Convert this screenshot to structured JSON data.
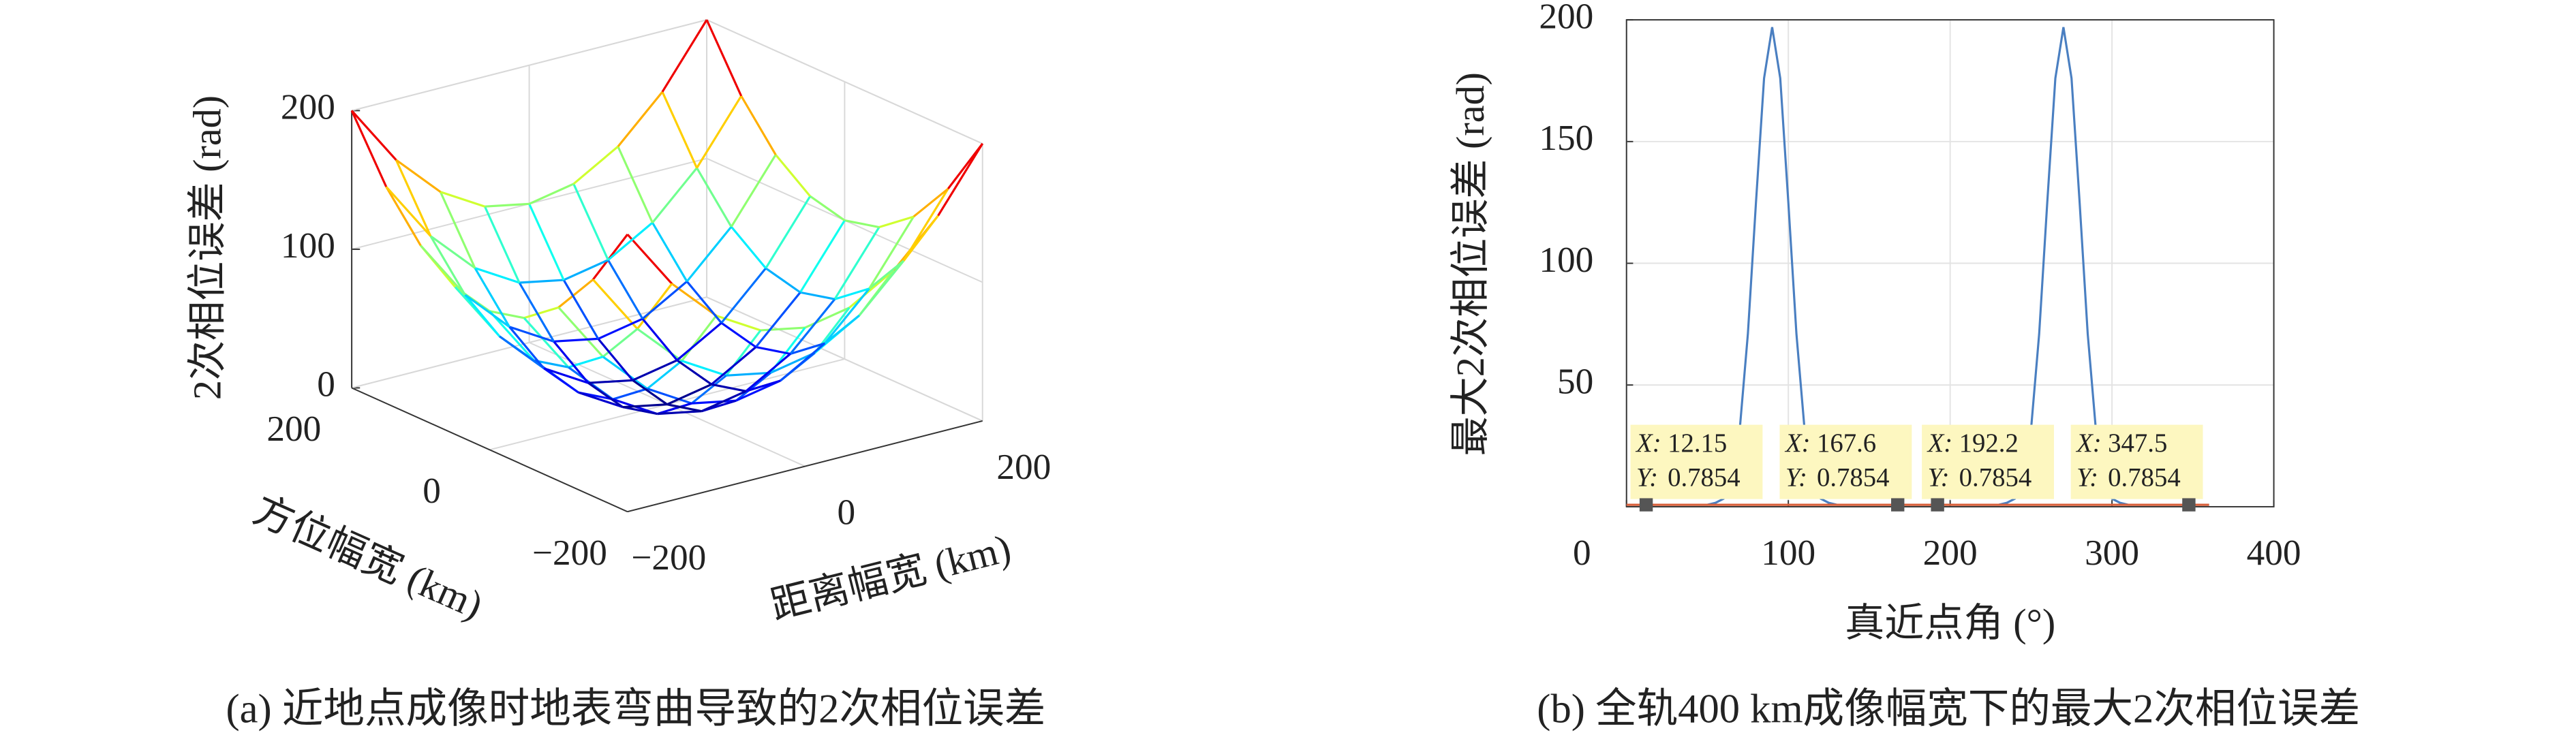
{
  "chart_data": [
    {
      "type": "surface",
      "colormap": "jet",
      "zlabel": "2次相位误差 (rad)",
      "xlabel": "距离幅宽 (km)",
      "ylabel": "方位幅宽 (km)",
      "caption": "(a) 近地点成像时地表弯曲导致的2次相位误差",
      "x": [
        -200,
        -150,
        -100,
        -50,
        0,
        50,
        100,
        150,
        200
      ],
      "y": [
        -200,
        -150,
        -100,
        -50,
        0,
        50,
        100,
        150,
        200
      ],
      "z": [
        [
          200,
          156.25,
          125,
          106.25,
          100,
          106.25,
          125,
          156.25,
          200
        ],
        [
          156.25,
          112.5,
          81.25,
          62.5,
          56.25,
          62.5,
          81.25,
          112.5,
          156.25
        ],
        [
          125,
          81.25,
          50,
          31.25,
          25,
          31.25,
          50,
          81.25,
          125
        ],
        [
          106.25,
          62.5,
          31.25,
          12.5,
          6.25,
          12.5,
          31.25,
          62.5,
          106.25
        ],
        [
          100,
          56.25,
          25,
          6.25,
          0,
          6.25,
          25,
          56.25,
          100
        ],
        [
          106.25,
          62.5,
          31.25,
          12.5,
          6.25,
          12.5,
          31.25,
          62.5,
          106.25
        ],
        [
          125,
          81.25,
          50,
          31.25,
          25,
          31.25,
          50,
          81.25,
          125
        ],
        [
          156.25,
          112.5,
          81.25,
          62.5,
          56.25,
          62.5,
          81.25,
          112.5,
          156.25
        ],
        [
          200,
          156.25,
          125,
          106.25,
          100,
          106.25,
          125,
          156.25,
          200
        ]
      ],
      "xlim": [
        -200,
        200
      ],
      "ylim": [
        -200,
        200
      ],
      "zlim": [
        0,
        200
      ],
      "xticks": [
        {
          "value": -200,
          "label": "−200"
        },
        0,
        200
      ],
      "yticks": [
        {
          "value": -200,
          "label": "−200"
        },
        0,
        200
      ],
      "zticks": [
        0,
        100,
        200
      ],
      "grid": true
    },
    {
      "type": "line",
      "xlabel": "真近点角 (°)",
      "ylabel": "最大2次相位误差 (rad)",
      "caption": "(b) 全轨400 km成像幅宽下的最大2次相位误差",
      "x": [
        0,
        5,
        10,
        15,
        20,
        25,
        30,
        35,
        40,
        45,
        50,
        55,
        60,
        65,
        70,
        75,
        80,
        85,
        90,
        95,
        100,
        105,
        110,
        115,
        120,
        125,
        130,
        135,
        140,
        145,
        150,
        155,
        160,
        165,
        170,
        175,
        180,
        185,
        190,
        195,
        200,
        205,
        210,
        215,
        220,
        225,
        230,
        235,
        240,
        245,
        250,
        255,
        260,
        265,
        270,
        275,
        280,
        285,
        290,
        295,
        300,
        305,
        310,
        315,
        320,
        325,
        330,
        335,
        340,
        345,
        350,
        355,
        360
      ],
      "series": [
        {
          "color": "#4a7fc1",
          "values": [
            0.8,
            0.8,
            0.8,
            0.8,
            0.8,
            0.8,
            0.8,
            0.8,
            0.8,
            0.8,
            0.8,
            1.6,
            3.3,
            12,
            32,
            71,
            125,
            176,
            197,
            176,
            125,
            71,
            32,
            12,
            3.3,
            1.6,
            0.8,
            0.8,
            0.8,
            0.8,
            0.8,
            0.8,
            0.8,
            0.8,
            0.8,
            0.8,
            0.8,
            0.8,
            0.8,
            0.8,
            0.8,
            0.8,
            0.8,
            0.8,
            0.8,
            0.8,
            0.8,
            1.6,
            3.3,
            12,
            32,
            71,
            125,
            176,
            197,
            176,
            125,
            71,
            32,
            12,
            3.3,
            1.6,
            0.8,
            0.8,
            0.8,
            0.8,
            0.8,
            0.8,
            0.8,
            0.8,
            0.8,
            0.8,
            0.8
          ]
        },
        {
          "color": "#d9603b",
          "x": [
            0,
            360
          ],
          "values": [
            0.7854,
            0.7854
          ]
        }
      ],
      "datatip_x_label": "X:",
      "datatip_y_label": "Y:",
      "datatips": [
        {
          "x": 12.15,
          "y": 0.7854
        },
        {
          "x": 167.6,
          "y": 0.7854
        },
        {
          "x": 192.2,
          "y": 0.7854
        },
        {
          "x": 347.5,
          "y": 0.7854
        }
      ],
      "xlim": [
        0,
        400
      ],
      "ylim": [
        0,
        200
      ],
      "xticks": [
        0,
        100,
        200,
        300,
        400
      ],
      "yticks": [
        50,
        100,
        150,
        200
      ],
      "grid": true
    }
  ]
}
